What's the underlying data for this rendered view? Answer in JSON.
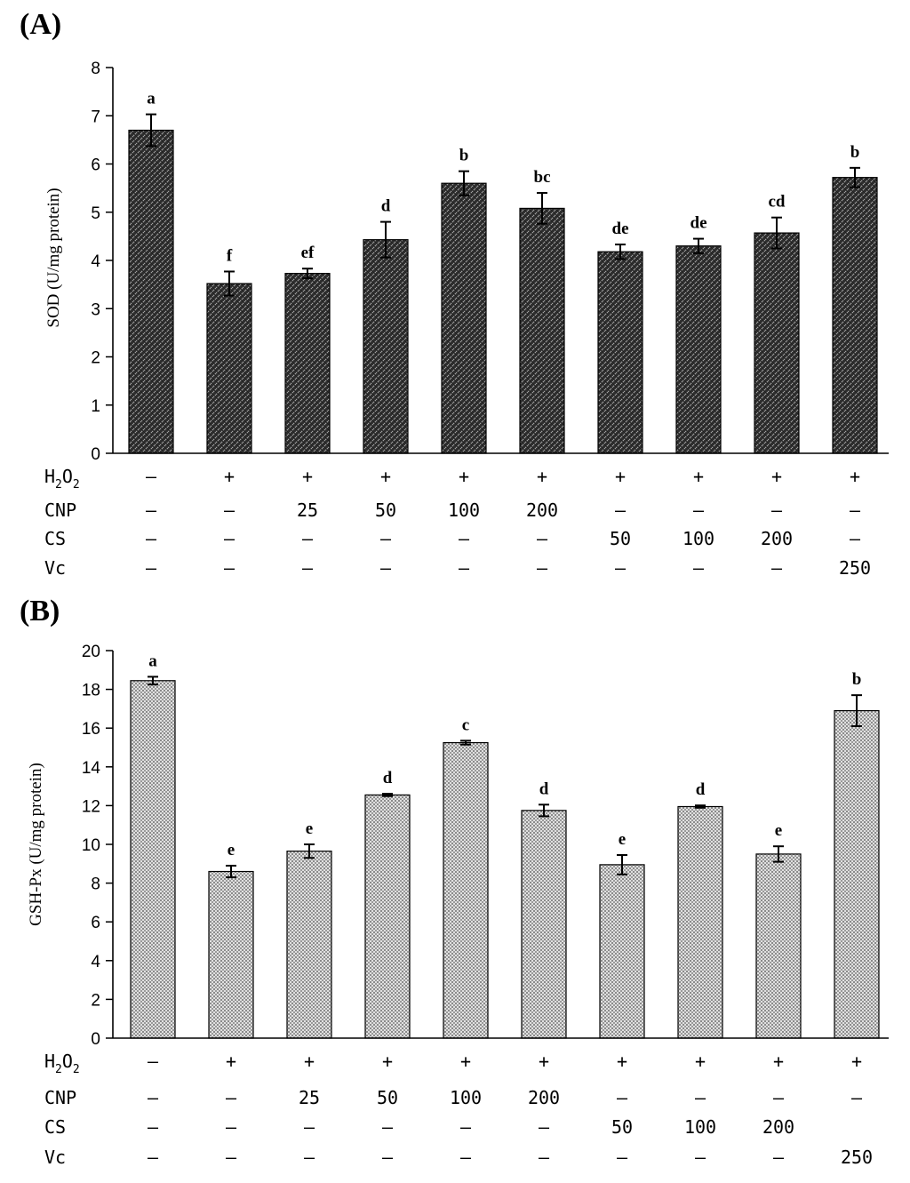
{
  "chart_data": [
    {
      "panel_label": "(A)",
      "type": "bar",
      "ylabel": "SOD (U/mg protein)",
      "ylim": [
        0,
        8
      ],
      "yticks": [
        0,
        1,
        2,
        3,
        4,
        5,
        6,
        7,
        8
      ],
      "pattern": "dense",
      "values": [
        6.7,
        3.52,
        3.73,
        4.43,
        5.6,
        5.08,
        4.18,
        4.3,
        4.57,
        5.72
      ],
      "errors": [
        0.33,
        0.25,
        0.1,
        0.37,
        0.25,
        0.32,
        0.15,
        0.15,
        0.32,
        0.2
      ],
      "significance": [
        "a",
        "f",
        "ef",
        "d",
        "b",
        "bc",
        "de",
        "de",
        "cd",
        "b"
      ],
      "treatments": [
        {
          "label": "H",
          "sub": "2",
          "label2": "O",
          "sub2": "2",
          "values": [
            "–",
            "+",
            "+",
            "+",
            "+",
            "+",
            "+",
            "+",
            "+",
            "+"
          ]
        },
        {
          "label": "CNP",
          "values": [
            "–",
            "–",
            "25",
            "50",
            "100",
            "200",
            "–",
            "–",
            "–",
            "–"
          ]
        },
        {
          "label": "CS",
          "values": [
            "–",
            "–",
            "–",
            "–",
            "–",
            "–",
            "50",
            "100",
            "200",
            "–"
          ]
        },
        {
          "label": "Vc",
          "values": [
            "–",
            "–",
            "–",
            "–",
            "–",
            "–",
            "–",
            "–",
            "–",
            "250"
          ]
        }
      ]
    },
    {
      "panel_label": "(B)",
      "type": "bar",
      "ylabel": "GSH-Px (U/mg protein)",
      "ylim": [
        0,
        20
      ],
      "yticks": [
        0,
        2,
        4,
        6,
        8,
        10,
        12,
        14,
        16,
        18,
        20
      ],
      "pattern": "light",
      "values": [
        18.45,
        8.6,
        9.65,
        12.55,
        15.25,
        11.75,
        8.95,
        11.95,
        9.5,
        16.9
      ],
      "errors": [
        0.2,
        0.3,
        0.35,
        0.06,
        0.1,
        0.3,
        0.5,
        0.06,
        0.4,
        0.8
      ],
      "significance": [
        "a",
        "e",
        "e",
        "d",
        "c",
        "d",
        "e",
        "d",
        "e",
        "b"
      ],
      "treatments": [
        {
          "label": "H",
          "sub": "2",
          "label2": "O",
          "sub2": "2",
          "values": [
            "–",
            "+",
            "+",
            "+",
            "+",
            "+",
            "+",
            "+",
            "+",
            "+"
          ]
        },
        {
          "label": "CNP",
          "values": [
            "–",
            "–",
            "25",
            "50",
            "100",
            "200",
            "–",
            "–",
            "–",
            "–"
          ]
        },
        {
          "label": "CS",
          "values": [
            "–",
            "–",
            "–",
            "–",
            "–",
            "–",
            "50",
            "100",
            "200",
            ""
          ]
        },
        {
          "label": "Vc",
          "values": [
            "–",
            "–",
            "–",
            "–",
            "–",
            "–",
            "–",
            "–",
            "–",
            "250"
          ]
        }
      ]
    }
  ]
}
